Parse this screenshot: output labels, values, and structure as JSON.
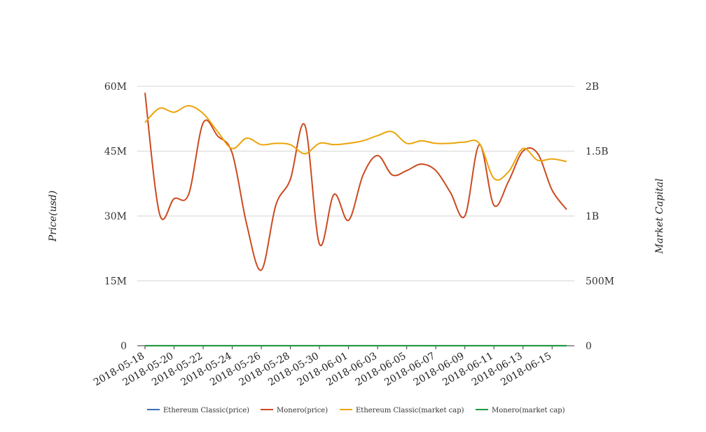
{
  "chart_data": {
    "type": "line",
    "title": "",
    "ylabel": "Price(usd)",
    "y2label": "Market Capital",
    "ylim": [
      0,
      60000000
    ],
    "y2lim": [
      0,
      2000000000
    ],
    "yticks": [
      "0",
      "15M",
      "30M",
      "45M",
      "60M"
    ],
    "y2ticks": [
      "0",
      "500M",
      "1B",
      "1.5B",
      "2B"
    ],
    "grid": true,
    "legend_position": "bottom",
    "x_tick_labels": [
      "2018-05-18",
      "2018-05-20",
      "2018-05-22",
      "2018-05-24",
      "2018-05-26",
      "2018-05-28",
      "2018-05-30",
      "2018-06-01",
      "2018-06-03",
      "2018-06-05",
      "2018-06-07",
      "2018-06-09",
      "2018-06-11",
      "2018-06-13",
      "2018-06-15"
    ],
    "x": [
      "2018-05-18",
      "2018-05-19",
      "2018-05-20",
      "2018-05-21",
      "2018-05-22",
      "2018-05-23",
      "2018-05-24",
      "2018-05-25",
      "2018-05-26",
      "2018-05-27",
      "2018-05-28",
      "2018-05-29",
      "2018-05-30",
      "2018-05-31",
      "2018-06-01",
      "2018-06-02",
      "2018-06-03",
      "2018-06-04",
      "2018-06-05",
      "2018-06-06",
      "2018-06-07",
      "2018-06-08",
      "2018-06-09",
      "2018-06-10",
      "2018-06-11",
      "2018-06-12",
      "2018-06-13",
      "2018-06-14",
      "2018-06-15",
      "2018-06-16"
    ],
    "series": [
      {
        "name": "Ethereum Classic(price)",
        "axis": "left",
        "color": "#3d6eb4",
        "values": [
          15,
          15,
          15,
          15,
          15,
          15,
          15,
          15,
          15,
          15,
          15,
          15,
          15,
          15,
          15,
          15,
          15,
          15,
          15,
          15,
          15,
          15,
          15,
          15,
          15,
          15,
          15,
          15,
          15,
          15
        ]
      },
      {
        "name": "Monero(price)",
        "axis": "left",
        "color": "#cc4a1f",
        "values": [
          58500000,
          30500000,
          34000000,
          35000000,
          51500000,
          48500000,
          44500000,
          28000000,
          17500000,
          32500000,
          38500000,
          51000000,
          23500000,
          35000000,
          29000000,
          39500000,
          44000000,
          39500000,
          40500000,
          42000000,
          40500000,
          35500000,
          30000000,
          46500000,
          32500000,
          38000000,
          45000000,
          44500000,
          36000000,
          31500000
        ]
      },
      {
        "name": "Ethereum Classic(market cap)",
        "axis": "right",
        "color": "#eba40a",
        "values": [
          1720000000,
          1830000000,
          1800000000,
          1850000000,
          1790000000,
          1650000000,
          1520000000,
          1600000000,
          1550000000,
          1560000000,
          1550000000,
          1480000000,
          1560000000,
          1550000000,
          1560000000,
          1580000000,
          1620000000,
          1650000000,
          1560000000,
          1580000000,
          1560000000,
          1560000000,
          1570000000,
          1560000000,
          1290000000,
          1340000000,
          1520000000,
          1430000000,
          1440000000,
          1420000000
        ]
      },
      {
        "name": "Monero(market cap)",
        "axis": "right",
        "color": "#1e9a3c",
        "values": [
          500000,
          500000,
          500000,
          500000,
          500000,
          500000,
          500000,
          500000,
          500000,
          500000,
          500000,
          500000,
          500000,
          500000,
          500000,
          500000,
          500000,
          500000,
          500000,
          500000,
          500000,
          500000,
          500000,
          500000,
          500000,
          500000,
          500000,
          500000,
          500000,
          500000
        ]
      }
    ]
  }
}
